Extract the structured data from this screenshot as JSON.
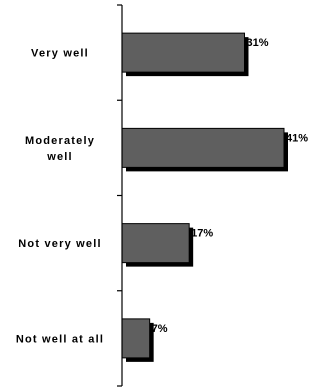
{
  "chart_data": {
    "type": "bar",
    "orientation": "horizontal",
    "categories": [
      [
        "Very well"
      ],
      [
        "Moderately",
        "well"
      ],
      [
        "Not very well"
      ],
      [
        "Not well at all"
      ]
    ],
    "values": [
      31,
      41,
      17,
      7
    ],
    "value_labels": [
      "31%",
      "41%",
      "17%",
      "7%"
    ],
    "xlim": [
      0,
      41
    ],
    "title": "",
    "xlabel": "",
    "ylabel": "",
    "grid": false,
    "legend": "none",
    "colors": {
      "bar": "#5f5f5f",
      "bar_stroke": "#000000",
      "shadow": "#000000",
      "axis": "#000000"
    }
  }
}
